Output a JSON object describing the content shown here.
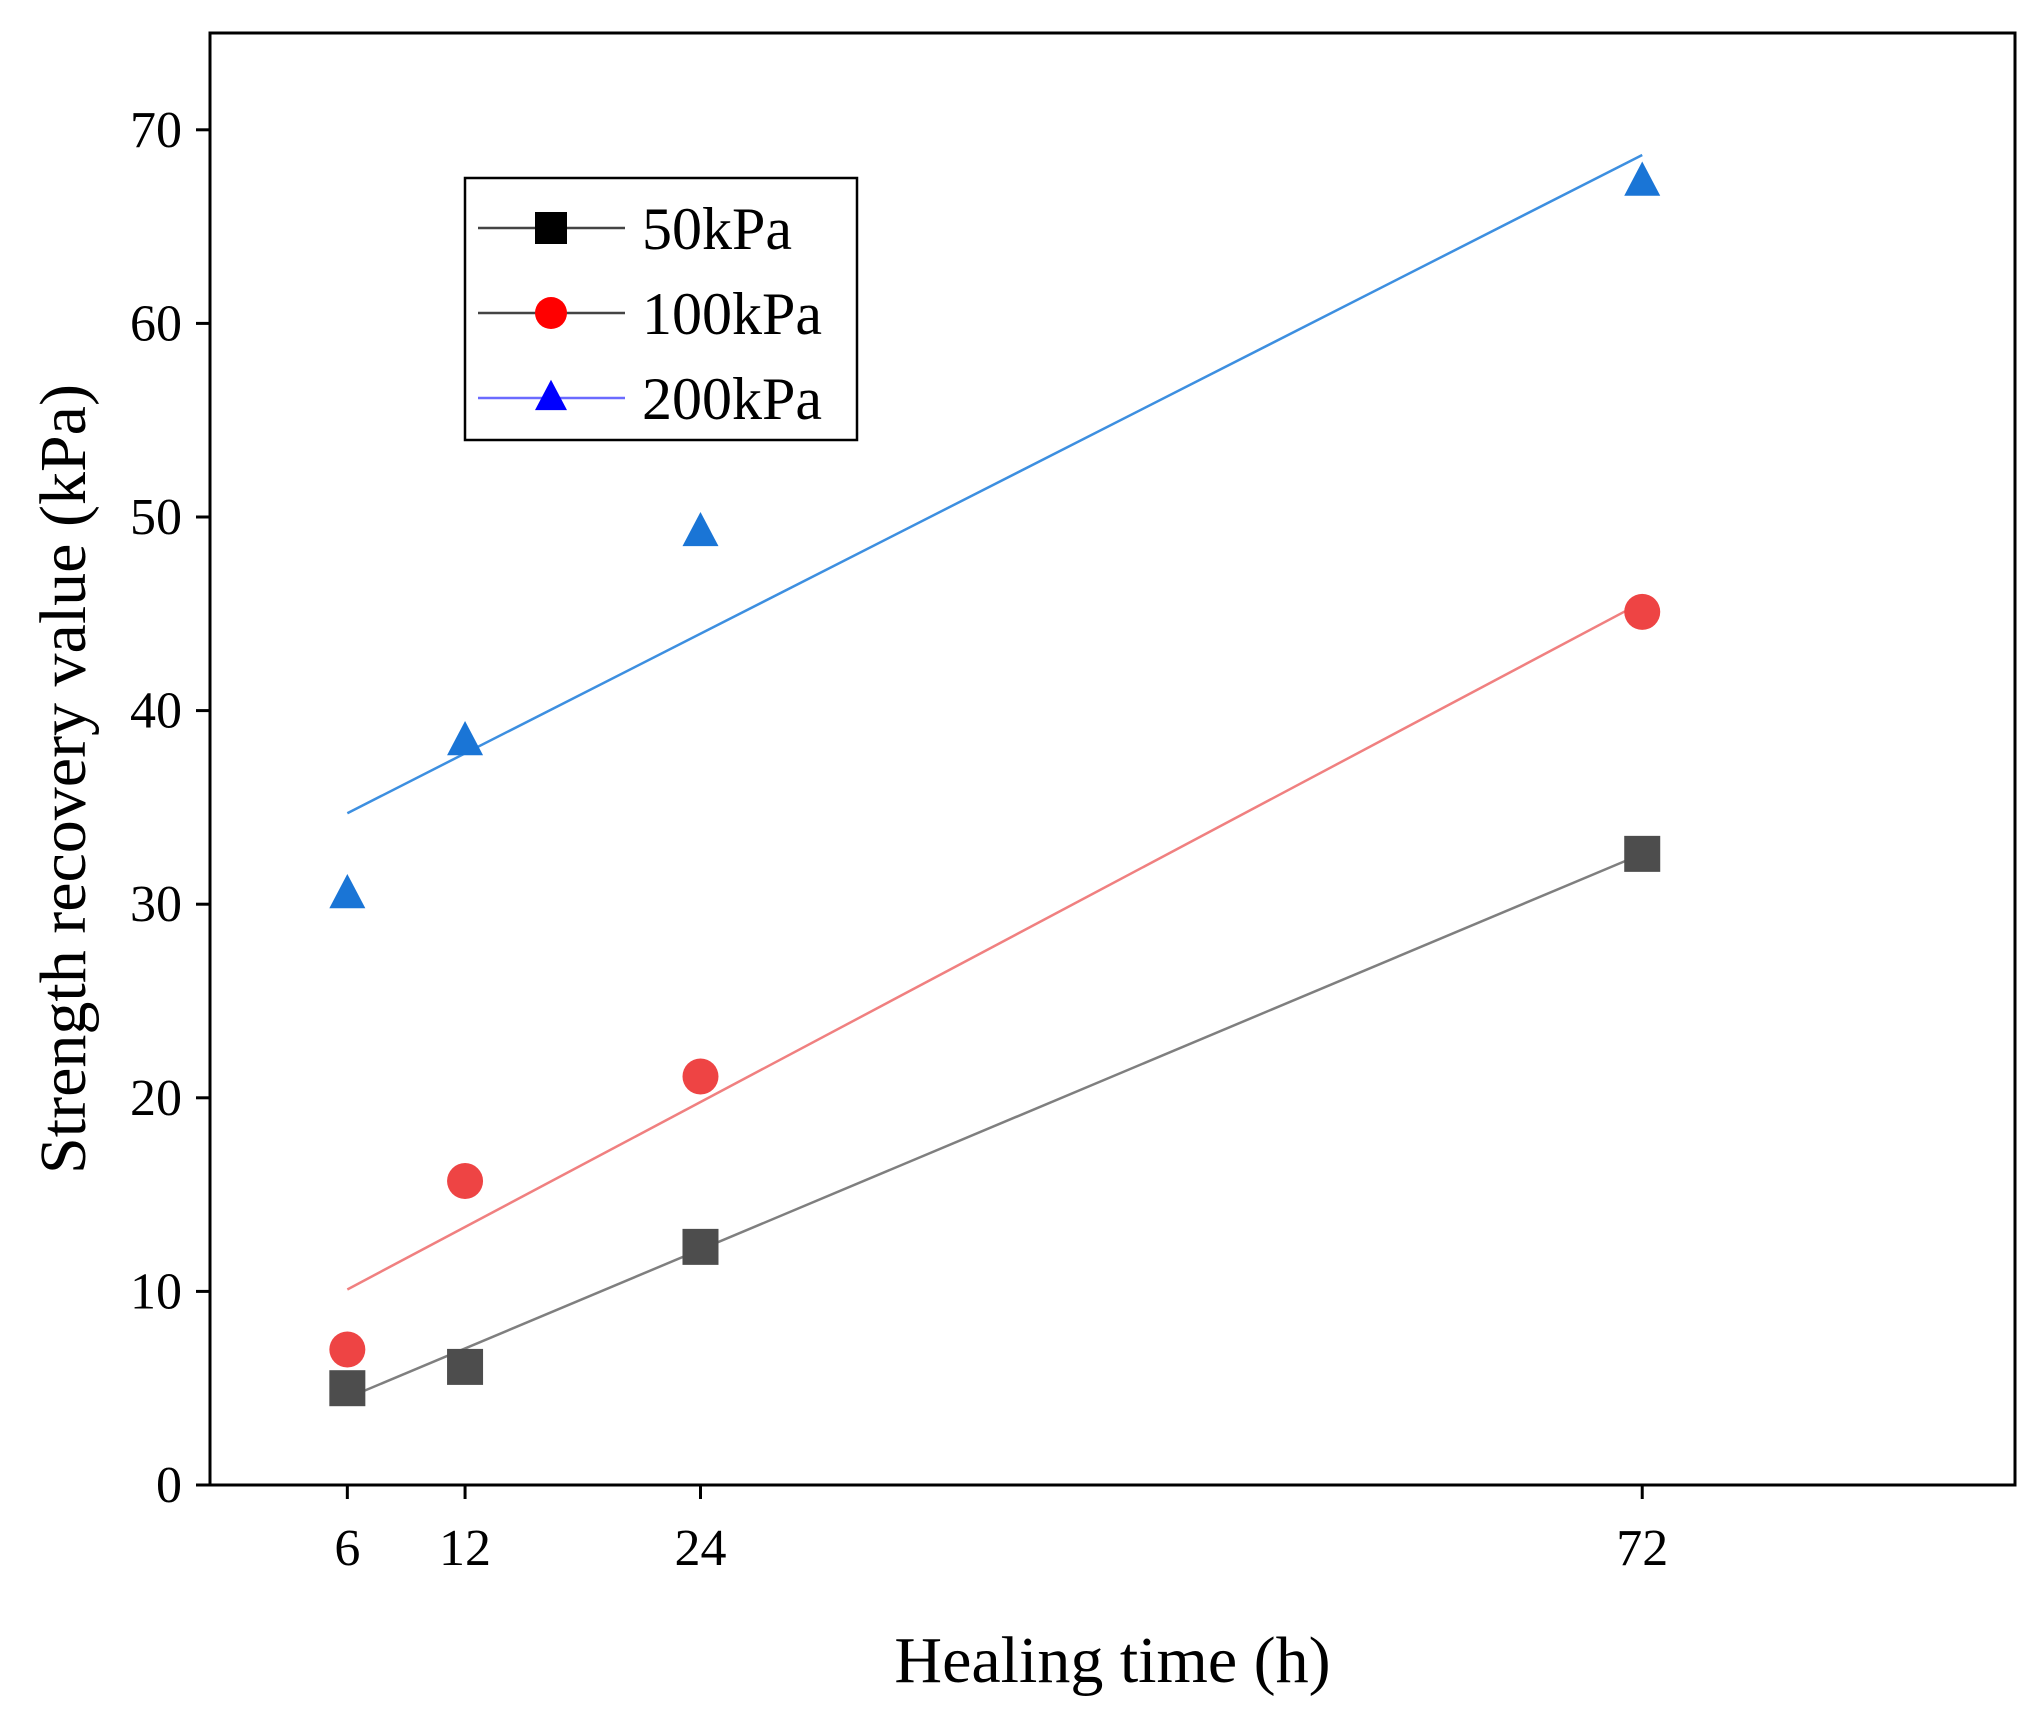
{
  "chart_data": {
    "type": "scatter",
    "title": "",
    "xlabel": "Healing time (h)",
    "ylabel": "Strength recovery value (kPa)",
    "xlim": [
      -1,
      91
    ],
    "ylim": [
      0,
      75
    ],
    "xticks": [
      6,
      12,
      24,
      72
    ],
    "yticks": [
      0,
      10,
      20,
      30,
      40,
      50,
      60,
      70
    ],
    "legend_position": "top-left",
    "series": [
      {
        "name": "50kPa",
        "marker": "square",
        "marker_color": "#4d4d4d",
        "legend_marker_color": "#000000",
        "line_color": "#7f7f7f",
        "legend_line_color": "#444444",
        "x": [
          6,
          12,
          24,
          72
        ],
        "y": [
          5.0,
          6.1,
          12.3,
          32.6
        ],
        "fit": {
          "x": [
            6,
            72
          ],
          "y": [
            4.5,
            32.6
          ]
        }
      },
      {
        "name": "100kPa",
        "marker": "circle",
        "marker_color": "#ee4444",
        "legend_marker_color": "#ff0000",
        "line_color": "#f08080",
        "legend_line_color": "#444444",
        "x": [
          6,
          12,
          24,
          72
        ],
        "y": [
          7.0,
          15.7,
          21.1,
          45.1
        ],
        "fit": {
          "x": [
            6,
            72
          ],
          "y": [
            10.1,
            45.6
          ]
        }
      },
      {
        "name": "200kPa",
        "marker": "triangle",
        "marker_color": "#1a75d6",
        "legend_marker_color": "#0000ff",
        "line_color": "#3d8fe0",
        "legend_line_color": "#6b6bff",
        "x": [
          6,
          12,
          24,
          72
        ],
        "y": [
          30.5,
          38.4,
          49.2,
          67.3
        ],
        "fit": {
          "x": [
            6,
            72
          ],
          "y": [
            34.7,
            68.7
          ]
        }
      }
    ]
  }
}
